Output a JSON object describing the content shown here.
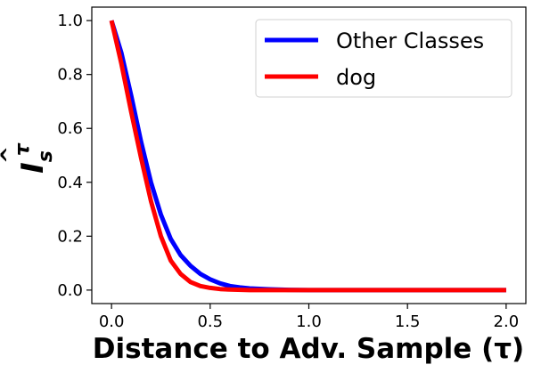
{
  "chart_data": {
    "type": "line",
    "xlabel": "Distance to Adv. Sample (τ)",
    "ylabel": "Î_s^τ",
    "ylabel_parts": {
      "base": "I",
      "sub": "s",
      "sup": "τ"
    },
    "xlim": [
      -0.1,
      2.1
    ],
    "ylim": [
      -0.05,
      1.05
    ],
    "x_ticks": [
      0.0,
      0.5,
      1.0,
      1.5,
      2.0
    ],
    "x_tick_labels": [
      "0.0",
      "0.5",
      "1.0",
      "1.5",
      "2.0"
    ],
    "y_ticks": [
      0.0,
      0.2,
      0.4,
      0.6,
      0.8,
      1.0
    ],
    "y_tick_labels": [
      "0.0",
      "0.2",
      "0.4",
      "0.6",
      "0.8",
      "1.0"
    ],
    "grid": false,
    "legend_position": "top-right",
    "series": [
      {
        "name": "Other Classes",
        "color": "#0000ff",
        "x": [
          0.0,
          0.05,
          0.1,
          0.15,
          0.2,
          0.25,
          0.3,
          0.35,
          0.4,
          0.45,
          0.5,
          0.55,
          0.6,
          0.65,
          0.7,
          0.8,
          0.9,
          1.0,
          1.2,
          1.5,
          2.0
        ],
        "y": [
          1.0,
          0.88,
          0.72,
          0.55,
          0.4,
          0.28,
          0.19,
          0.13,
          0.09,
          0.06,
          0.04,
          0.025,
          0.015,
          0.01,
          0.006,
          0.003,
          0.001,
          0.0,
          0.0,
          0.0,
          0.0
        ]
      },
      {
        "name": "dog",
        "color": "#ff0000",
        "x": [
          0.0,
          0.05,
          0.1,
          0.15,
          0.2,
          0.25,
          0.3,
          0.35,
          0.4,
          0.45,
          0.5,
          0.55,
          0.6,
          0.7,
          0.8,
          1.0,
          1.5,
          2.0
        ],
        "y": [
          1.0,
          0.84,
          0.66,
          0.49,
          0.33,
          0.2,
          0.11,
          0.06,
          0.03,
          0.015,
          0.008,
          0.004,
          0.002,
          0.0,
          0.0,
          0.0,
          0.0,
          0.0
        ]
      }
    ]
  }
}
